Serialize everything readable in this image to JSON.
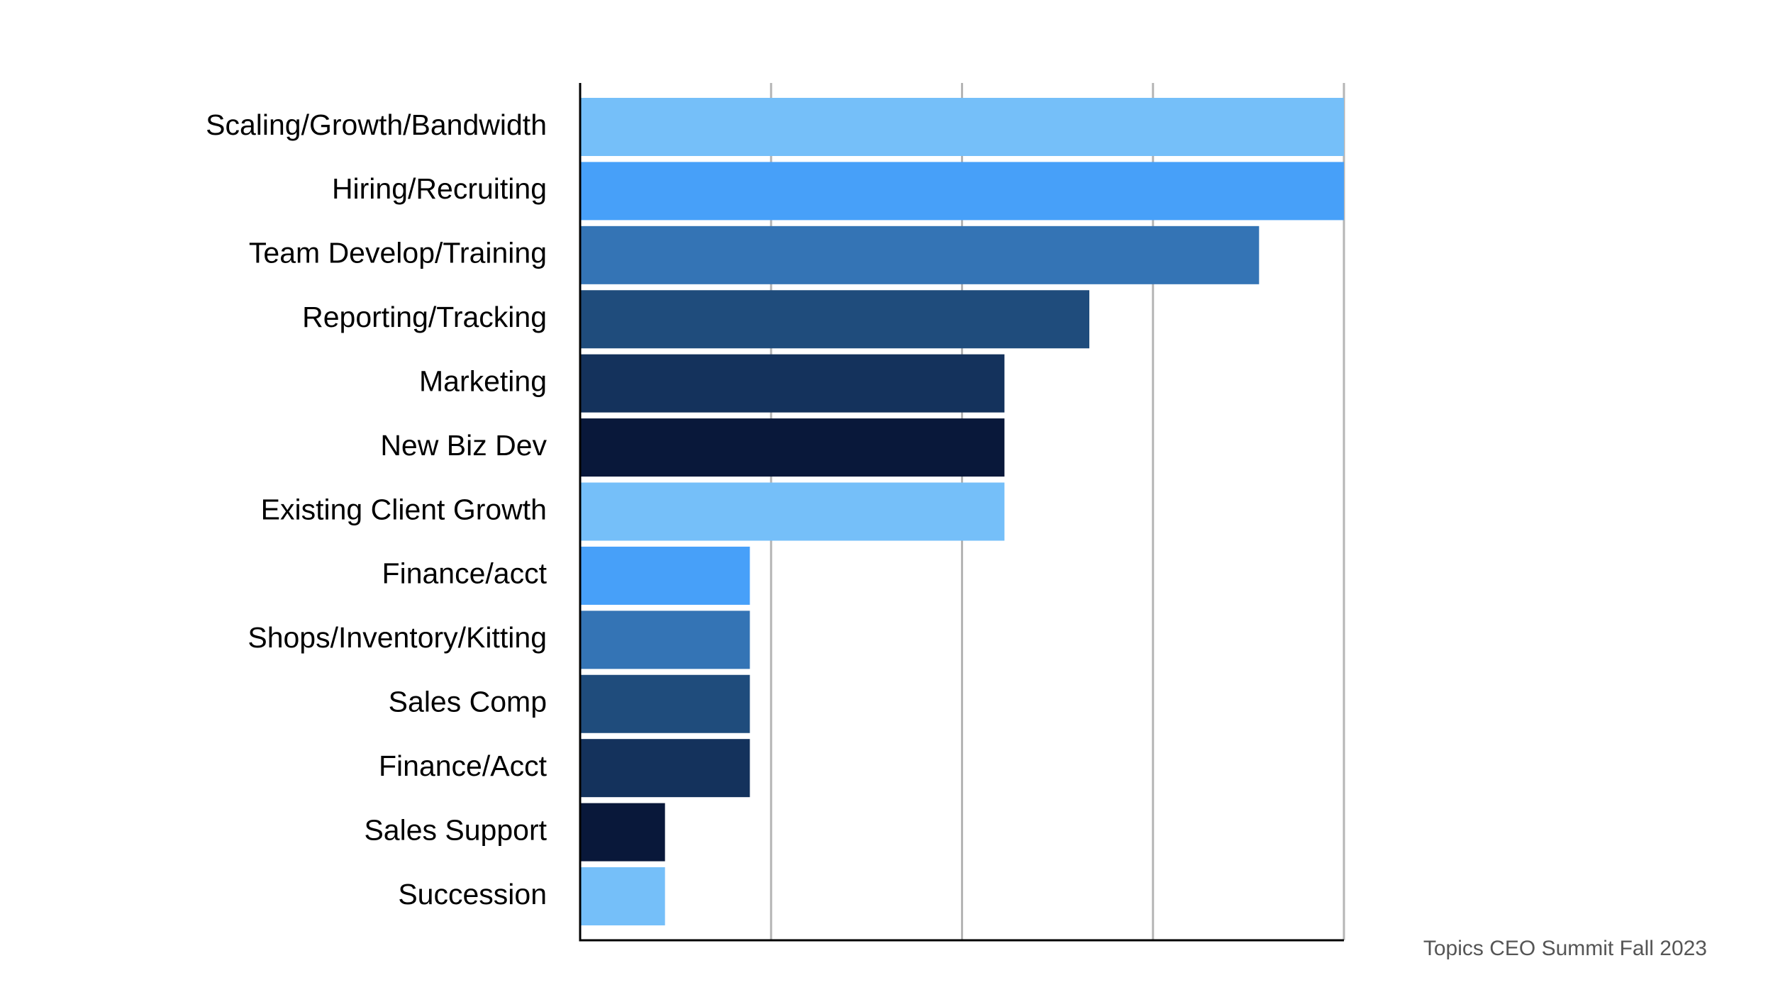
{
  "chart_data": {
    "type": "hbar",
    "categories": [
      "Scaling/Growth/Bandwidth",
      "Hiring/Recruiting",
      "Team Develop/Training",
      "Reporting/Tracking",
      "Marketing",
      "New Biz Dev",
      "Existing Client Growth",
      "Finance/acct",
      "Shops/Inventory/Kitting",
      "Sales Comp",
      "Finance/Acct",
      "Sales Support",
      "Succession"
    ],
    "values": [
      9,
      9,
      8,
      6,
      5,
      5,
      5,
      2,
      2,
      2,
      2,
      1,
      1
    ],
    "colors": [
      "#75bff9",
      "#47a0f9",
      "#3474b5",
      "#1f4c7c",
      "#14325c",
      "#09183a",
      "#75bff9",
      "#47a0f9",
      "#3474b5",
      "#1f4c7c",
      "#14325c",
      "#09183a",
      "#75bff9"
    ],
    "xlim": [
      0,
      9
    ],
    "xticks": [
      0,
      2.25,
      4.5,
      6.75,
      9
    ],
    "grid": true,
    "annotation": "Topics CEO Summit Fall 2023"
  }
}
